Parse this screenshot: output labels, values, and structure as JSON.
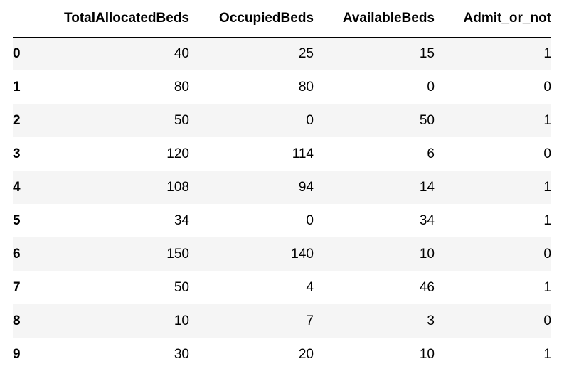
{
  "table": {
    "columns": [
      "TotalAllocatedBeds",
      "OccupiedBeds",
      "AvailableBeds",
      "Admit_or_not"
    ],
    "rows": [
      {
        "index": "0",
        "values": [
          "40",
          "25",
          "15",
          "1"
        ]
      },
      {
        "index": "1",
        "values": [
          "80",
          "80",
          "0",
          "0"
        ]
      },
      {
        "index": "2",
        "values": [
          "50",
          "0",
          "50",
          "1"
        ]
      },
      {
        "index": "3",
        "values": [
          "120",
          "114",
          "6",
          "0"
        ]
      },
      {
        "index": "4",
        "values": [
          "108",
          "94",
          "14",
          "1"
        ]
      },
      {
        "index": "5",
        "values": [
          "34",
          "0",
          "34",
          "1"
        ]
      },
      {
        "index": "6",
        "values": [
          "150",
          "140",
          "10",
          "0"
        ]
      },
      {
        "index": "7",
        "values": [
          "50",
          "4",
          "46",
          "1"
        ]
      },
      {
        "index": "8",
        "values": [
          "10",
          "7",
          "3",
          "0"
        ]
      },
      {
        "index": "9",
        "values": [
          "30",
          "20",
          "10",
          "1"
        ]
      }
    ]
  },
  "colors": {
    "stripe": "#f5f5f5",
    "background": "#ffffff",
    "text": "#000000"
  }
}
